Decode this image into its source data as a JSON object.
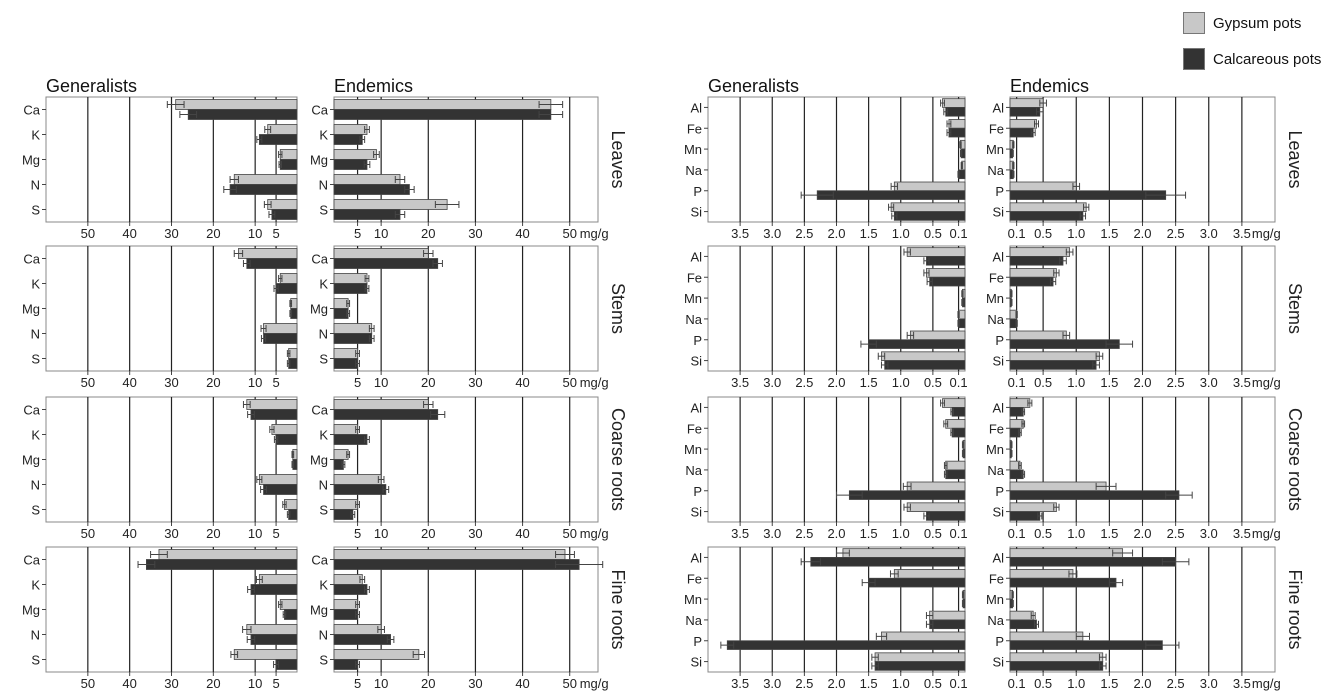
{
  "legend": {
    "gypsum": {
      "label": "Gypsum pots",
      "color": "#c8c8c8"
    },
    "calcareous": {
      "label": "Calcareous pots",
      "color": "#333333"
    }
  },
  "group_titles": {
    "left_generalists": "Generalists",
    "left_endemics": "Endemics",
    "right_generalists": "Generalists",
    "right_endemics": "Endemics"
  },
  "row_labels": [
    "Leaves",
    "Stems",
    "Coarse roots",
    "Fine roots"
  ],
  "chart_data": [
    {
      "type": "bar",
      "panel": "macronutrients",
      "unit_label": "mg/g",
      "categories": [
        "Ca",
        "K",
        "Mg",
        "N",
        "S"
      ],
      "series": [
        {
          "name": "Gypsum pots",
          "color": "#c8c8c8"
        },
        {
          "name": "Calcareous pots",
          "color": "#333333"
        }
      ],
      "generalists": {
        "xlim": [
          60,
          0
        ],
        "ticks": [
          50,
          40,
          30,
          20,
          10,
          5
        ],
        "tick_labels": [
          "50",
          "40",
          "30",
          "20",
          "10",
          "5"
        ],
        "rows": {
          "Leaves": {
            "gypsum": [
              29,
              7,
              4,
              15,
              7
            ],
            "gypsum_err": [
              2,
              0.7,
              0.4,
              1,
              0.8
            ],
            "calcareous": [
              26,
              9,
              4,
              16,
              6
            ],
            "calcareous_err": [
              2,
              0.6,
              0.3,
              1.5,
              0.7
            ]
          },
          "Stems": {
            "gypsum": [
              14,
              4,
              1.5,
              8,
              2
            ],
            "gypsum_err": [
              1,
              0.4,
              0.2,
              0.6,
              0.3
            ],
            "calcareous": [
              12,
              5,
              1.5,
              8,
              2
            ],
            "calcareous_err": [
              0.8,
              0.5,
              0.2,
              0.5,
              0.3
            ]
          },
          "Coarse roots": {
            "gypsum": [
              12,
              6,
              1,
              9,
              3
            ],
            "gypsum_err": [
              0.8,
              0.5,
              0.2,
              0.6,
              0.4
            ],
            "calcareous": [
              11,
              5,
              1,
              8,
              2
            ],
            "calcareous_err": [
              0.8,
              0.4,
              0.2,
              0.7,
              0.3
            ]
          },
          "Fine roots": {
            "gypsum": [
              33,
              9,
              4,
              12,
              15
            ],
            "gypsum_err": [
              2,
              0.7,
              0.4,
              1,
              0.8
            ],
            "calcareous": [
              36,
              11,
              3,
              11,
              5
            ],
            "calcareous_err": [
              2,
              0.8,
              0.3,
              0.9,
              0.6
            ]
          }
        }
      },
      "endemics": {
        "xlim": [
          0,
          56
        ],
        "ticks": [
          5,
          10,
          20,
          30,
          40,
          50
        ],
        "tick_labels": [
          "5",
          "10",
          "20",
          "30",
          "40",
          "50"
        ],
        "rows": {
          "Leaves": {
            "gypsum": [
              46,
              7,
              9,
              14,
              24
            ],
            "gypsum_err": [
              2.5,
              0.5,
              0.6,
              1,
              2.5
            ],
            "calcareous": [
              46,
              6,
              7,
              16,
              14
            ],
            "calcareous_err": [
              2.5,
              0.5,
              0.6,
              1,
              1
            ]
          },
          "Stems": {
            "gypsum": [
              20,
              7,
              3,
              8,
              5
            ],
            "gypsum_err": [
              1,
              0.4,
              0.3,
              0.5,
              0.4
            ],
            "calcareous": [
              22,
              7,
              3,
              8,
              5
            ],
            "calcareous_err": [
              1,
              0.4,
              0.3,
              0.5,
              0.4
            ]
          },
          "Coarse roots": {
            "gypsum": [
              20,
              5,
              3,
              10,
              5
            ],
            "gypsum_err": [
              1,
              0.4,
              0.3,
              0.6,
              0.4
            ],
            "calcareous": [
              22,
              7,
              2,
              11,
              4
            ],
            "calcareous_err": [
              1.5,
              0.5,
              0.3,
              0.6,
              0.4
            ]
          },
          "Fine roots": {
            "gypsum": [
              49,
              6,
              5,
              10,
              18
            ],
            "gypsum_err": [
              2,
              0.5,
              0.4,
              0.7,
              1.2
            ],
            "calcareous": [
              52,
              7,
              5,
              12,
              5
            ],
            "calcareous_err": [
              5,
              0.5,
              0.4,
              0.7,
              0.4
            ]
          }
        }
      }
    },
    {
      "type": "bar",
      "panel": "micronutrients",
      "unit_label": "mg/g",
      "categories": [
        "Al",
        "Fe",
        "Mn",
        "Na",
        "P",
        "Si"
      ],
      "series": [
        {
          "name": "Gypsum pots",
          "color": "#c8c8c8"
        },
        {
          "name": "Calcareous pots",
          "color": "#333333"
        }
      ],
      "generalists": {
        "xlim": [
          4.0,
          0
        ],
        "ticks": [
          3.5,
          3.0,
          2.5,
          2.0,
          1.5,
          1.0,
          0.5,
          0.1
        ],
        "tick_labels": [
          "3.5",
          "3.0",
          "2.5",
          "2.0",
          "1.5",
          "1.0",
          "0.5",
          "0.1"
        ],
        "rows": {
          "Leaves": {
            "gypsum": [
              0.35,
              0.25,
              0.07,
              0.05,
              1.1,
              1.15
            ],
            "gypsum_err": [
              0.03,
              0.03,
              0.01,
              0.01,
              0.05,
              0.04
            ],
            "calcareous": [
              0.3,
              0.25,
              0.06,
              0.1,
              2.3,
              1.1
            ],
            "calcareous_err": [
              0.03,
              0.03,
              0.01,
              0.01,
              0.25,
              0.04
            ]
          },
          "Stems": {
            "gypsum": [
              0.9,
              0.6,
              0.04,
              0.1,
              0.85,
              1.3
            ],
            "gypsum_err": [
              0.05,
              0.04,
              0.01,
              0.01,
              0.05,
              0.05
            ],
            "calcareous": [
              0.6,
              0.55,
              0.04,
              0.1,
              1.5,
              1.25
            ],
            "calcareous_err": [
              0.04,
              0.04,
              0.01,
              0.01,
              0.12,
              0.05
            ]
          },
          "Coarse roots": {
            "gypsum": [
              0.35,
              0.3,
              0.03,
              0.3,
              0.9,
              0.9
            ],
            "gypsum_err": [
              0.03,
              0.03,
              0.01,
              0.02,
              0.06,
              0.05
            ],
            "calcareous": [
              0.2,
              0.2,
              0.03,
              0.3,
              1.8,
              0.6
            ],
            "calcareous_err": [
              0.02,
              0.02,
              0.01,
              0.02,
              0.2,
              0.04
            ]
          },
          "Fine roots": {
            "gypsum": [
              1.9,
              1.1,
              0.03,
              0.55,
              1.3,
              1.4
            ],
            "gypsum_err": [
              0.1,
              0.06,
              0.01,
              0.05,
              0.08,
              0.05
            ],
            "calcareous": [
              2.4,
              1.5,
              0.03,
              0.55,
              3.7,
              1.4
            ],
            "calcareous_err": [
              0.15,
              0.1,
              0.01,
              0.05,
              0.1,
              0.05
            ]
          }
        }
      },
      "endemics": {
        "xlim": [
          0,
          4.0
        ],
        "ticks": [
          0.1,
          0.5,
          1.0,
          1.5,
          2.0,
          2.5,
          3.0,
          3.5
        ],
        "tick_labels": [
          "0.1",
          "0.5",
          "1.0",
          "1.5",
          "2.0",
          "2.5",
          "3.0",
          "3.5"
        ],
        "rows": {
          "Leaves": {
            "gypsum": [
              0.5,
              0.4,
              0.05,
              0.05,
              1.0,
              1.15
            ],
            "gypsum_err": [
              0.05,
              0.03,
              0.01,
              0.01,
              0.05,
              0.04
            ],
            "calcareous": [
              0.45,
              0.35,
              0.04,
              0.05,
              2.35,
              1.1
            ],
            "calcareous_err": [
              0.05,
              0.03,
              0.01,
              0.01,
              0.3,
              0.04
            ]
          },
          "Stems": {
            "gypsum": [
              0.9,
              0.7,
              0.02,
              0.1,
              0.85,
              1.35
            ],
            "gypsum_err": [
              0.05,
              0.04,
              0.01,
              0.01,
              0.05,
              0.05
            ],
            "calcareous": [
              0.8,
              0.65,
              0.02,
              0.1,
              1.65,
              1.3
            ],
            "calcareous_err": [
              0.05,
              0.04,
              0.01,
              0.01,
              0.2,
              0.05
            ]
          },
          "Coarse roots": {
            "gypsum": [
              0.3,
              0.2,
              0.02,
              0.15,
              1.45,
              0.7
            ],
            "gypsum_err": [
              0.03,
              0.02,
              0.01,
              0.02,
              0.15,
              0.04
            ],
            "calcareous": [
              0.2,
              0.15,
              0.02,
              0.2,
              2.55,
              0.45
            ],
            "calcareous_err": [
              0.02,
              0.02,
              0.01,
              0.02,
              0.2,
              0.03
            ]
          },
          "Fine roots": {
            "gypsum": [
              1.7,
              0.95,
              0.04,
              0.35,
              1.1,
              1.4
            ],
            "gypsum_err": [
              0.15,
              0.06,
              0.01,
              0.03,
              0.1,
              0.05
            ],
            "calcareous": [
              2.5,
              1.6,
              0.04,
              0.4,
              2.3,
              1.4
            ],
            "calcareous_err": [
              0.2,
              0.1,
              0.01,
              0.03,
              0.25,
              0.05
            ]
          }
        }
      }
    }
  ]
}
